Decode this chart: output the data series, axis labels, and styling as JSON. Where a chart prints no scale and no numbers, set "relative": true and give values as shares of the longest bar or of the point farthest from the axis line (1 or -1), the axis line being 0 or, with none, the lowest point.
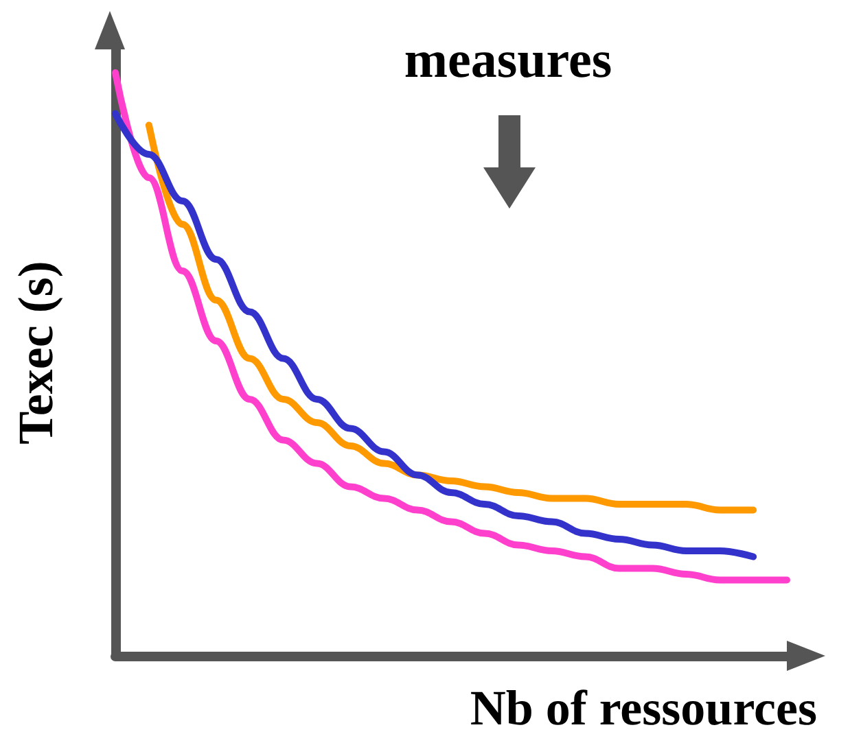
{
  "chart_data": {
    "type": "line",
    "relative": true,
    "xlabel": "Nb of ressources",
    "ylabel": "Texec (s)",
    "annotations": [
      "measures"
    ],
    "marker": "none",
    "line_style": "solid",
    "categories": [
      null,
      null,
      null,
      null,
      null,
      null,
      null,
      null,
      null,
      null,
      null,
      null,
      null,
      null,
      null,
      null,
      null,
      null,
      null,
      null,
      null
    ],
    "series": [
      {
        "color": "#ff40cc",
        "values": [
          1.0,
          0.82,
          0.66,
          0.54,
          0.44,
          0.37,
          0.33,
          0.29,
          0.27,
          0.25,
          0.23,
          0.21,
          0.19,
          0.18,
          0.17,
          0.15,
          0.15,
          0.14,
          0.13,
          0.13,
          0.13
        ]
      },
      {
        "color": "#ff9900",
        "values": [
          null,
          0.91,
          0.74,
          0.61,
          0.51,
          0.44,
          0.4,
          0.36,
          0.33,
          0.31,
          0.3,
          0.29,
          0.28,
          0.27,
          0.27,
          0.26,
          0.26,
          0.26,
          0.25,
          0.25,
          null
        ]
      },
      {
        "color": "#3333cc",
        "values": [
          0.93,
          0.86,
          0.78,
          0.68,
          0.59,
          0.51,
          0.44,
          0.39,
          0.35,
          0.31,
          0.28,
          0.26,
          0.24,
          0.23,
          0.21,
          0.2,
          0.19,
          0.18,
          0.18,
          0.17,
          null
        ]
      }
    ]
  }
}
